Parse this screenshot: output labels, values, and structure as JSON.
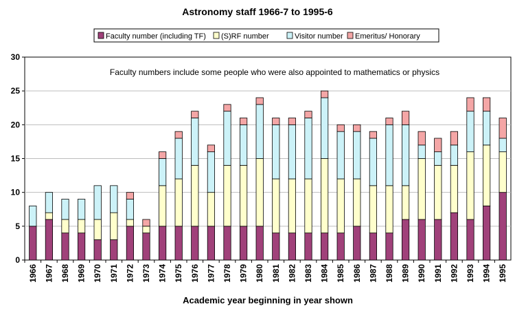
{
  "chart_data": {
    "type": "bar",
    "stacked": true,
    "title": "Astronomy staff 1966-7 to 1995-6",
    "xlabel": "Academic year beginning in year shown",
    "ylabel": "",
    "ylim": [
      0,
      30
    ],
    "yticks": [
      "0",
      "5",
      "10",
      "15",
      "20",
      "25",
      "30"
    ],
    "grid": true,
    "legend_position": "top",
    "annotation": "Faculty numbers include some people who were also appointed to mathematics or physics",
    "categories": [
      "1966",
      "1967",
      "1968",
      "1969",
      "1970",
      "1971",
      "1972",
      "1973",
      "1974",
      "1975",
      "1976",
      "1977",
      "1978",
      "1979",
      "1980",
      "1981",
      "1982",
      "1983",
      "1984",
      "1985",
      "1986",
      "1987",
      "1988",
      "1989",
      "1990",
      "1991",
      "1992",
      "1993",
      "1994",
      "1995"
    ],
    "series": [
      {
        "name": "Faculty number (including TF)",
        "color": "#a0417a",
        "values": [
          5,
          6,
          4,
          4,
          3,
          3,
          5,
          4,
          5,
          5,
          5,
          5,
          5,
          5,
          5,
          4,
          4,
          4,
          4,
          4,
          5,
          4,
          4,
          6,
          6,
          6,
          7,
          6,
          8,
          10
        ]
      },
      {
        "name": "(S)RF number",
        "color": "#ffffcc",
        "values": [
          0,
          1,
          2,
          2,
          3,
          4,
          1,
          1,
          6,
          7,
          9,
          5,
          9,
          9,
          10,
          8,
          8,
          8,
          11,
          8,
          7,
          7,
          7,
          5,
          9,
          8,
          7,
          10,
          9,
          6
        ]
      },
      {
        "name": "Visitor number",
        "color": "#ccf2f8",
        "values": [
          3,
          3,
          3,
          3,
          5,
          4,
          3,
          0,
          4,
          6,
          7,
          6,
          8,
          6,
          8,
          8,
          8,
          9,
          9,
          7,
          7,
          7,
          9,
          9,
          2,
          2,
          3,
          6,
          5,
          2
        ]
      },
      {
        "name": "Emeritus/ Honorary",
        "color": "#f4a6a6",
        "values": [
          0,
          0,
          0,
          0,
          0,
          0,
          1,
          1,
          1,
          1,
          1,
          1,
          1,
          1,
          1,
          1,
          1,
          1,
          1,
          1,
          1,
          1,
          1,
          2,
          2,
          2,
          2,
          2,
          2,
          3
        ]
      }
    ]
  }
}
